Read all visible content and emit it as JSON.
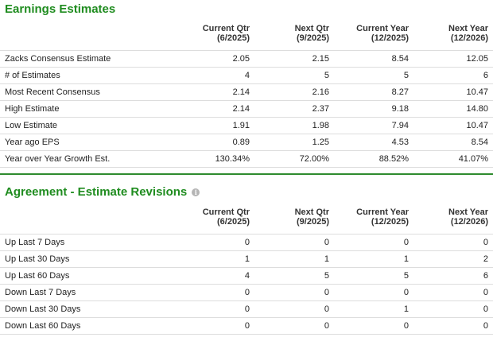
{
  "earnings": {
    "title": "Earnings Estimates",
    "columns": [
      {
        "line1": "Current Qtr",
        "line2": "(6/2025)"
      },
      {
        "line1": "Next Qtr",
        "line2": "(9/2025)"
      },
      {
        "line1": "Current Year",
        "line2": "(12/2025)"
      },
      {
        "line1": "Next Year",
        "line2": "(12/2026)"
      }
    ],
    "rows": [
      {
        "label": "Zacks Consensus Estimate",
        "values": [
          "2.05",
          "2.15",
          "8.54",
          "12.05"
        ]
      },
      {
        "label": "# of Estimates",
        "values": [
          "4",
          "5",
          "5",
          "6"
        ]
      },
      {
        "label": "Most Recent Consensus",
        "values": [
          "2.14",
          "2.16",
          "8.27",
          "10.47"
        ]
      },
      {
        "label": "High Estimate",
        "values": [
          "2.14",
          "2.37",
          "9.18",
          "14.80"
        ]
      },
      {
        "label": "Low Estimate",
        "values": [
          "1.91",
          "1.98",
          "7.94",
          "10.47"
        ]
      },
      {
        "label": "Year ago EPS",
        "values": [
          "0.89",
          "1.25",
          "4.53",
          "8.54"
        ]
      },
      {
        "label": "Year over Year Growth Est.",
        "values": [
          "130.34%",
          "72.00%",
          "88.52%",
          "41.07%"
        ]
      }
    ]
  },
  "revisions": {
    "title": "Agreement - Estimate Revisions",
    "info_icon": "i",
    "columns": [
      {
        "line1": "Current Qtr",
        "line2": "(6/2025)"
      },
      {
        "line1": "Next Qtr",
        "line2": "(9/2025)"
      },
      {
        "line1": "Current Year",
        "line2": "(12/2025)"
      },
      {
        "line1": "Next Year",
        "line2": "(12/2026)"
      }
    ],
    "rows": [
      {
        "label": "Up Last 7 Days",
        "values": [
          "0",
          "0",
          "0",
          "0"
        ]
      },
      {
        "label": "Up Last 30 Days",
        "values": [
          "1",
          "1",
          "1",
          "2"
        ]
      },
      {
        "label": "Up Last 60 Days",
        "values": [
          "4",
          "5",
          "5",
          "6"
        ]
      },
      {
        "label": "Down Last 7 Days",
        "values": [
          "0",
          "0",
          "0",
          "0"
        ]
      },
      {
        "label": "Down Last 30 Days",
        "values": [
          "0",
          "0",
          "1",
          "0"
        ]
      },
      {
        "label": "Down Last 60 Days",
        "values": [
          "0",
          "0",
          "0",
          "0"
        ]
      }
    ]
  },
  "colors": {
    "title": "#1f8c1f",
    "divider": "#2e8b2e",
    "row_border": "#dddddd"
  }
}
